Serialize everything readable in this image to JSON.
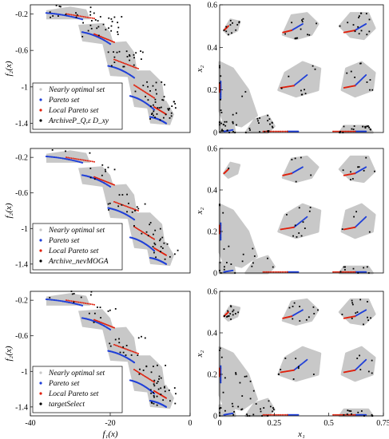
{
  "legend_labels": [
    [
      "Nearly optimal set",
      "Pareto set",
      "Local Pareto set",
      "ArchiveP_Q,ε D_xy"
    ],
    [
      "Nearly optimal set",
      "Pareto set",
      "Local Pareto set",
      "Archive_nevMOGA"
    ],
    [
      "Nearly optimal set",
      "Pareto set",
      "Local Pareto set",
      "targetSelect"
    ]
  ],
  "axes_labels": {
    "f1": "f₁(x)",
    "f2": "f₂(x)",
    "x1": "x₁",
    "x2": "x₂"
  },
  "colors": {
    "nearly": "#c8c8c8",
    "pareto": "#1f3fd8",
    "local": "#e0200c",
    "archive": "#000000"
  },
  "chart_data": [
    {
      "type": "scatter",
      "panel": "objective-space-row-1",
      "xlim": [
        -40,
        0
      ],
      "ylim": [
        -1.5,
        -0.1
      ],
      "xticks": [],
      "yticks": [
        -0.2,
        -0.6,
        -1,
        -1.4
      ],
      "ylabel": "f₂(x)",
      "series": [
        "Nearly optimal set",
        "Pareto set",
        "Local Pareto set",
        "ArchiveP_Q,ε D_xy"
      ]
    },
    {
      "type": "scatter",
      "panel": "decision-space-row-1",
      "xlim": [
        0,
        0.75
      ],
      "ylim": [
        0,
        0.6
      ],
      "xticks": [],
      "yticks": [
        0,
        0.2,
        0.4,
        0.6
      ],
      "ylabel": "x₂"
    },
    {
      "type": "scatter",
      "panel": "objective-space-row-2",
      "xlim": [
        -40,
        0
      ],
      "ylim": [
        -1.5,
        -0.1
      ],
      "xticks": [],
      "yticks": [
        -0.2,
        -0.6,
        -1,
        -1.4
      ],
      "ylabel": "f₂(x)",
      "series": [
        "Nearly optimal set",
        "Pareto set",
        "Local Pareto set",
        "Archive_nevMOGA"
      ]
    },
    {
      "type": "scatter",
      "panel": "decision-space-row-2",
      "xlim": [
        0,
        0.75
      ],
      "ylim": [
        0,
        0.6
      ],
      "xticks": [],
      "yticks": [
        0,
        0.2,
        0.4,
        0.6
      ],
      "ylabel": "x₂"
    },
    {
      "type": "scatter",
      "panel": "objective-space-row-3",
      "xlim": [
        -40,
        0
      ],
      "ylim": [
        -1.5,
        -0.1
      ],
      "xticks": [
        -40,
        -20,
        0
      ],
      "yticks": [
        -0.2,
        -0.6,
        -1,
        -1.4
      ],
      "xlabel": "f₁(x)",
      "ylabel": "f₂(x)",
      "series": [
        "Nearly optimal set",
        "Pareto set",
        "Local Pareto set",
        "targetSelect"
      ]
    },
    {
      "type": "scatter",
      "panel": "decision-space-row-3",
      "xlim": [
        0,
        0.75
      ],
      "ylim": [
        0,
        0.6
      ],
      "xticks": [
        0,
        0.25,
        0.5,
        0.75
      ],
      "yticks": [
        0,
        0.2,
        0.4,
        0.6
      ],
      "xlabel": "x₁",
      "ylabel": "x₂"
    }
  ]
}
